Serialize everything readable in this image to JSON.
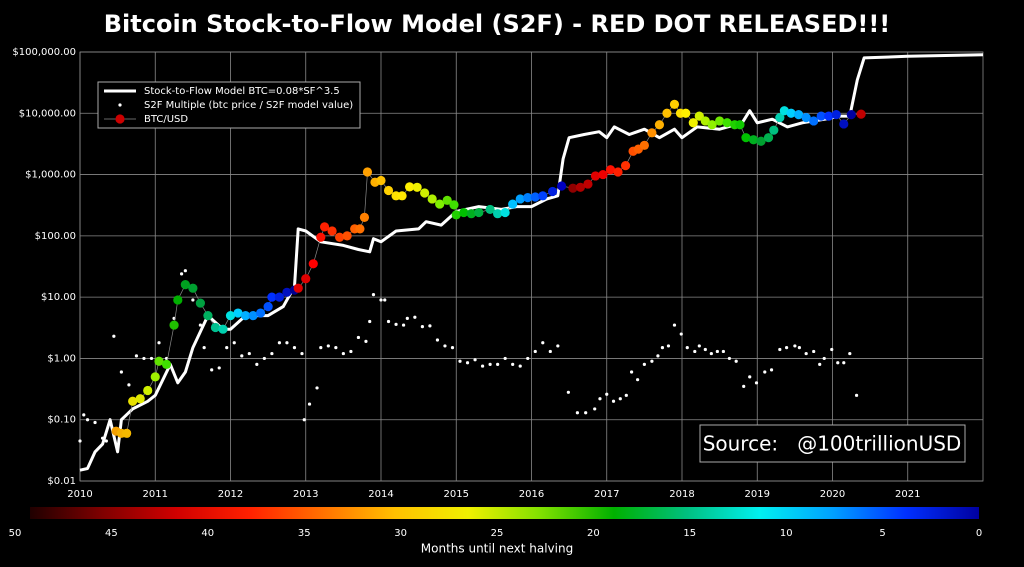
{
  "chart_data": {
    "type": "line",
    "title": "Bitcoin Stock-to-Flow Model (S2F) - RED DOT RELEASED!!!",
    "annotation": "Source:   @100trillionUSD",
    "ylog": true,
    "grid": true,
    "grid_color": "#8a8a8a",
    "legend": "upper left",
    "xlim": [
      2010,
      2022
    ],
    "xticks": [
      2010,
      2011,
      2012,
      2013,
      2014,
      2015,
      2016,
      2017,
      2018,
      2019,
      2020,
      2021
    ],
    "ylim": [
      0.01,
      100000
    ],
    "yticks": [
      {
        "value": 0.01,
        "label": "$0.01"
      },
      {
        "value": 0.1,
        "label": "$0.10"
      },
      {
        "value": 1,
        "label": "$1.00"
      },
      {
        "value": 10,
        "label": "$10.00"
      },
      {
        "value": 100,
        "label": "$100.00"
      },
      {
        "value": 1000,
        "label": "$1,000.00"
      },
      {
        "value": 10000,
        "label": "$10,000.00"
      },
      {
        "value": 100000,
        "label": "$100,000.00"
      }
    ],
    "series": [
      {
        "name": "Stock-to-Flow Model BTC=0.08*SF^3.5",
        "kind": "line",
        "color": "#ffffff",
        "x": [
          2010.0,
          2010.1,
          2010.2,
          2010.3,
          2010.4,
          2010.5,
          2010.55,
          2010.7,
          2010.9,
          2011.0,
          2011.2,
          2011.3,
          2011.4,
          2011.5,
          2011.7,
          2011.9,
          2012.0,
          2012.2,
          2012.5,
          2012.7,
          2012.85,
          2012.9,
          2013.0,
          2013.2,
          2013.5,
          2013.7,
          2013.85,
          2013.9,
          2014.0,
          2014.2,
          2014.5,
          2014.6,
          2014.8,
          2015.0,
          2015.3,
          2015.6,
          2015.8,
          2016.0,
          2016.2,
          2016.35,
          2016.42,
          2016.5,
          2016.7,
          2016.9,
          2017.0,
          2017.1,
          2017.3,
          2017.5,
          2017.7,
          2017.9,
          2018.0,
          2018.2,
          2018.5,
          2018.8,
          2018.9,
          2019.0,
          2019.2,
          2019.4,
          2019.6,
          2019.9,
          2020.1,
          2020.23,
          2020.33,
          2020.42,
          2021.0,
          2022.0
        ],
        "values": [
          0.015,
          0.016,
          0.03,
          0.04,
          0.1,
          0.03,
          0.1,
          0.15,
          0.2,
          0.25,
          0.8,
          0.4,
          0.6,
          1.5,
          5,
          3,
          3,
          5,
          5,
          7,
          15,
          130,
          120,
          80,
          70,
          60,
          55,
          90,
          80,
          120,
          130,
          170,
          150,
          250,
          300,
          270,
          300,
          300,
          400,
          450,
          1800,
          4000,
          4500,
          5000,
          4000,
          6000,
          4500,
          5500,
          4000,
          5500,
          4000,
          6000,
          5500,
          7000,
          11000,
          7000,
          8000,
          6000,
          7000,
          8000,
          9000,
          9000,
          35000,
          80000,
          85000,
          90000
        ]
      },
      {
        "name": "S2F Multiple (btc price / S2F model value)",
        "kind": "dots",
        "color": "#ffffff",
        "x": [
          2010.0,
          2010.05,
          2010.1,
          2010.2,
          2010.3,
          2010.35,
          2010.45,
          2010.55,
          2010.65,
          2010.75,
          2010.85,
          2010.95,
          2011.05,
          2011.15,
          2011.25,
          2011.35,
          2011.4,
          2011.5,
          2011.6,
          2011.65,
          2011.75,
          2011.85,
          2011.95,
          2012.05,
          2012.15,
          2012.25,
          2012.35,
          2012.45,
          2012.55,
          2012.65,
          2012.75,
          2012.85,
          2012.95,
          2012.98,
          2013.05,
          2013.15,
          2013.2,
          2013.3,
          2013.4,
          2013.5,
          2013.6,
          2013.7,
          2013.8,
          2013.85,
          2013.9,
          2014.0,
          2014.05,
          2014.1,
          2014.2,
          2014.3,
          2014.35,
          2014.45,
          2014.55,
          2014.65,
          2014.75,
          2014.85,
          2014.95,
          2015.05,
          2015.15,
          2015.25,
          2015.35,
          2015.45,
          2015.55,
          2015.65,
          2015.75,
          2015.85,
          2015.95,
          2016.05,
          2016.15,
          2016.25,
          2016.35,
          2016.49,
          2016.61,
          2016.72,
          2016.84,
          2016.91,
          2017.0,
          2017.09,
          2017.18,
          2017.26,
          2017.33,
          2017.41,
          2017.5,
          2017.6,
          2017.68,
          2017.74,
          2017.82,
          2017.9,
          2017.99,
          2018.07,
          2018.17,
          2018.23,
          2018.31,
          2018.39,
          2018.47,
          2018.55,
          2018.63,
          2018.72,
          2018.82,
          2018.9,
          2018.99,
          2019.1,
          2019.19,
          2019.3,
          2019.39,
          2019.5,
          2019.56,
          2019.65,
          2019.75,
          2019.83,
          2019.89,
          2019.99,
          2020.07,
          2020.15,
          2020.23,
          2020.32
        ],
        "values": [
          0.045,
          0.12,
          0.1,
          0.09,
          0.05,
          0.045,
          2.3,
          0.6,
          0.37,
          1.1,
          1.0,
          1.0,
          1.8,
          1.0,
          4.5,
          24,
          27,
          9,
          3.5,
          1.5,
          0.65,
          0.7,
          1.5,
          1.8,
          1.1,
          1.2,
          0.8,
          1.0,
          1.2,
          1.8,
          1.8,
          1.5,
          1.2,
          0.1,
          0.18,
          0.33,
          1.5,
          1.6,
          1.5,
          1.2,
          1.3,
          2.2,
          1.9,
          4,
          11,
          9,
          9,
          4,
          3.6,
          3.5,
          4.5,
          4.7,
          3.3,
          3.4,
          2,
          1.6,
          1.5,
          0.9,
          0.85,
          0.95,
          0.75,
          0.8,
          0.8,
          1.0,
          0.8,
          0.75,
          1.0,
          1.3,
          1.8,
          1.3,
          1.6,
          0.28,
          0.13,
          0.13,
          0.15,
          0.22,
          0.26,
          0.2,
          0.22,
          0.25,
          0.6,
          0.45,
          0.8,
          0.9,
          1.1,
          1.5,
          1.6,
          3.5,
          2.5,
          1.5,
          1.3,
          1.6,
          1.4,
          1.2,
          1.3,
          1.3,
          1.0,
          0.9,
          0.35,
          0.5,
          0.4,
          0.6,
          0.65,
          1.4,
          1.5,
          1.6,
          1.5,
          1.2,
          1.3,
          0.8,
          1.0,
          1.4,
          0.85,
          0.85,
          1.2,
          0.25
        ]
      },
      {
        "name": "BTC/USD",
        "kind": "colored-dots",
        "color": "#cc0000",
        "line_color": "#8a8a8a",
        "x": [
          2010.48,
          2010.55,
          2010.62,
          2010.7,
          2010.8,
          2010.9,
          2011.0,
          2011.05,
          2011.15,
          2011.25,
          2011.3,
          2011.4,
          2011.5,
          2011.6,
          2011.7,
          2011.8,
          2011.9,
          2012.0,
          2012.1,
          2012.2,
          2012.3,
          2012.4,
          2012.5,
          2012.55,
          2012.65,
          2012.75,
          2012.85,
          2012.9,
          2013.0,
          2013.1,
          2013.2,
          2013.25,
          2013.35,
          2013.45,
          2013.55,
          2013.65,
          2013.72,
          2013.78,
          2013.82,
          2013.92,
          2014.0,
          2014.1,
          2014.2,
          2014.28,
          2014.38,
          2014.48,
          2014.58,
          2014.68,
          2014.78,
          2014.88,
          2014.97,
          2015.0,
          2015.1,
          2015.2,
          2015.3,
          2015.45,
          2015.55,
          2015.65,
          2015.75,
          2015.85,
          2015.95,
          2016.05,
          2016.15,
          2016.28,
          2016.4,
          2016.55,
          2016.65,
          2016.75,
          2016.85,
          2016.95,
          2017.05,
          2017.15,
          2017.25,
          2017.35,
          2017.42,
          2017.5,
          2017.6,
          2017.7,
          2017.8,
          2017.9,
          2017.98,
          2018.05,
          2018.15,
          2018.23,
          2018.31,
          2018.4,
          2018.5,
          2018.6,
          2018.7,
          2018.77,
          2018.85,
          2018.95,
          2019.05,
          2019.15,
          2019.22,
          2019.3,
          2019.36,
          2019.45,
          2019.55,
          2019.65,
          2019.75,
          2019.85,
          2019.95,
          2020.05,
          2020.15,
          2020.25,
          2020.38
        ],
        "values": [
          0.065,
          0.06,
          0.06,
          0.2,
          0.22,
          0.3,
          0.5,
          0.9,
          0.8,
          3.5,
          9,
          16,
          14,
          8,
          5,
          3.2,
          3,
          5,
          5.5,
          5,
          5,
          5.5,
          7,
          10,
          10,
          12,
          13,
          14,
          20,
          35,
          95,
          140,
          120,
          95,
          100,
          130,
          130,
          200,
          1100,
          750,
          800,
          550,
          450,
          450,
          630,
          620,
          500,
          400,
          330,
          380,
          320,
          220,
          240,
          230,
          240,
          270,
          230,
          240,
          330,
          400,
          420,
          430,
          450,
          530,
          650,
          600,
          620,
          700,
          950,
          1000,
          1200,
          1100,
          1400,
          2400,
          2600,
          3000,
          4800,
          6500,
          10000,
          14000,
          10000,
          10000,
          7000,
          9000,
          7500,
          6500,
          7500,
          7000,
          6500,
          6500,
          4000,
          3700,
          3500,
          4000,
          5300,
          8500,
          11000,
          10000,
          9500,
          8500,
          7500,
          9000,
          9000,
          9500,
          6700,
          9500,
          9700
        ],
        "colors": [
          "#f5a000",
          "#f5b000",
          "#f5b800",
          "#e8e000",
          "#e0e800",
          "#d0f000",
          "#a0f000",
          "#60e000",
          "#40e000",
          "#20c000",
          "#00b000",
          "#00a020",
          "#00a030",
          "#00a040",
          "#00b060",
          "#00c090",
          "#00d0b0",
          "#00e0e0",
          "#00d0ff",
          "#00b0ff",
          "#0090ff",
          "#0070ff",
          "#0050ff",
          "#0030ff",
          "#0020e0",
          "#0010c0",
          "#000090",
          "#e00000",
          "#e00000",
          "#ff0000",
          "#ff1000",
          "#ff2000",
          "#ff3000",
          "#ff4000",
          "#ff5000",
          "#ff6000",
          "#ff7000",
          "#ff8000",
          "#ffa000",
          "#ffb000",
          "#ffc000",
          "#ffd000",
          "#ffe000",
          "#ffe800",
          "#fff000",
          "#f0f000",
          "#d0f000",
          "#b0f000",
          "#80f000",
          "#60e000",
          "#40e000",
          "#20d000",
          "#00c000",
          "#00b020",
          "#00b040",
          "#00c080",
          "#00d0b0",
          "#00e0e0",
          "#00c0ff",
          "#00a0ff",
          "#0080ff",
          "#0060ff",
          "#0040ff",
          "#0020e0",
          "#0000c0",
          "#900000",
          "#b00000",
          "#c00000",
          "#e00000",
          "#f00000",
          "#ff1000",
          "#ff2000",
          "#ff3000",
          "#ff5000",
          "#ff6000",
          "#ff7000",
          "#ff9000",
          "#ffb000",
          "#ffc000",
          "#ffd000",
          "#ffe000",
          "#fff000",
          "#f0f000",
          "#d0f000",
          "#b0f000",
          "#90f000",
          "#70e800",
          "#40e000",
          "#20d000",
          "#10c800",
          "#00c000",
          "#00b020",
          "#00a030",
          "#00b050",
          "#00c080",
          "#00d0b0",
          "#00e0e0",
          "#00d0ff",
          "#00b0ff",
          "#0090ff",
          "#0070ff",
          "#0050ff",
          "#0030ff",
          "#0020e0",
          "#0010c0",
          "#0000a0",
          "#c00000"
        ]
      }
    ],
    "colorbar": {
      "label": "Months until next halving",
      "lim": [
        50,
        0
      ],
      "ticks": [
        50,
        45,
        40,
        35,
        30,
        25,
        20,
        15,
        10,
        5,
        0
      ],
      "colors": [
        "#200000",
        "#800000",
        "#d00000",
        "#ff2000",
        "#ff7000",
        "#ffc000",
        "#f0f000",
        "#80e000",
        "#00b000",
        "#00c080",
        "#00f0f0",
        "#00a0ff",
        "#0030ff",
        "#0000a0"
      ]
    }
  }
}
